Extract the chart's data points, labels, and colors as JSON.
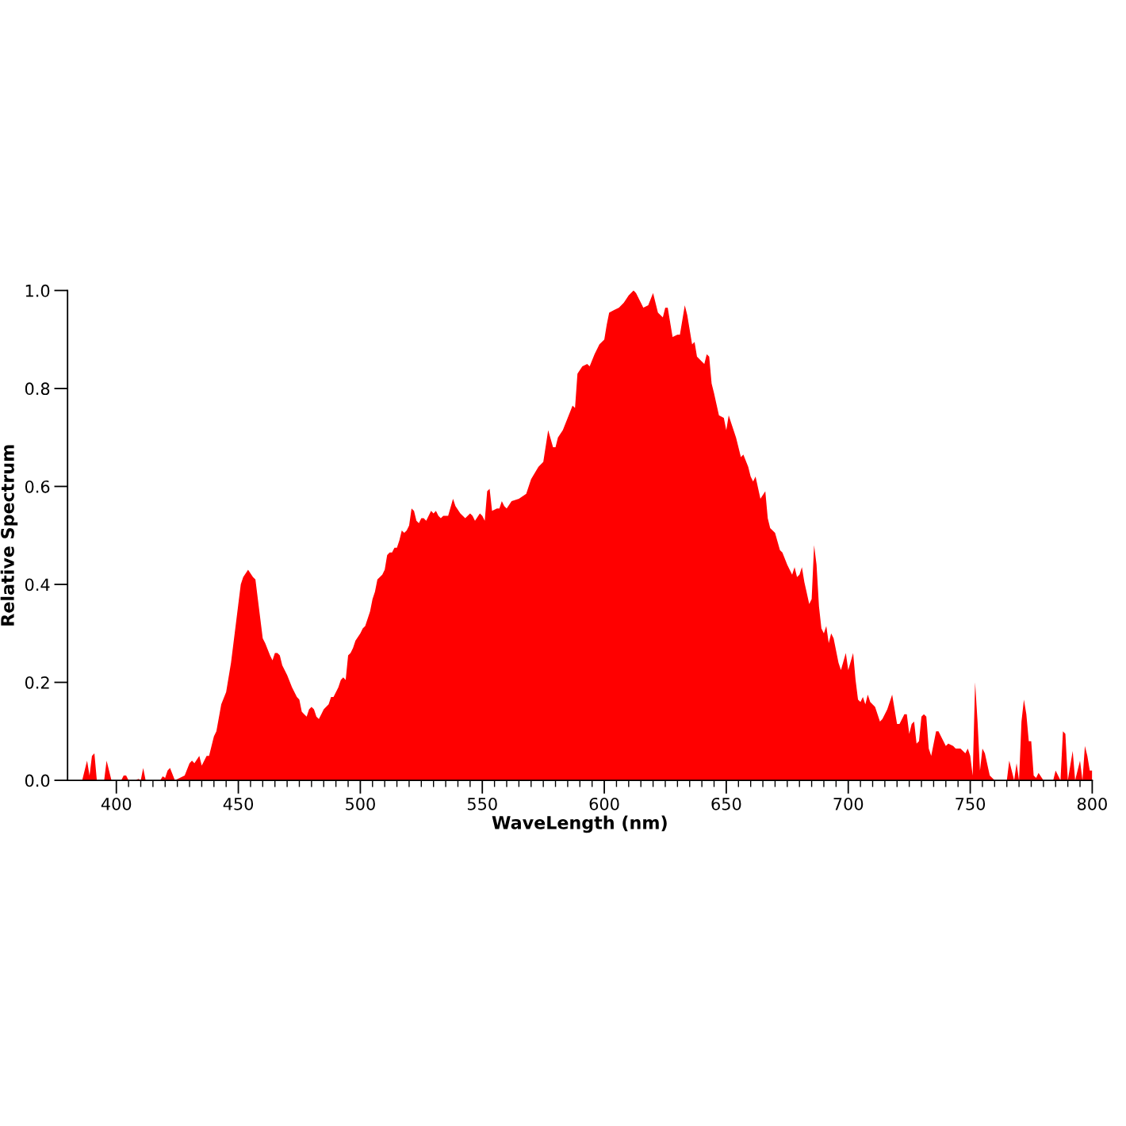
{
  "chart_data": {
    "type": "area",
    "xlabel": "WaveLength (nm)",
    "ylabel": "Relative Spectrum",
    "xlim": [
      380,
      800
    ],
    "ylim": [
      0,
      1.0
    ],
    "xticks": [
      400,
      {
        "value": 405,
        "label": null
      },
      {
        "value": 410,
        "label": null
      },
      {
        "value": 415,
        "label": null
      },
      {
        "value": 420,
        "label": null
      },
      {
        "value": 425,
        "label": null
      },
      {
        "value": 430,
        "label": null
      },
      {
        "value": 435,
        "label": null
      },
      {
        "value": 440,
        "label": null
      },
      {
        "value": 445,
        "label": null
      },
      450,
      {
        "value": 455,
        "label": null
      },
      {
        "value": 460,
        "label": null
      },
      {
        "value": 465,
        "label": null
      },
      {
        "value": 470,
        "label": null
      },
      {
        "value": 475,
        "label": null
      },
      {
        "value": 480,
        "label": null
      },
      {
        "value": 485,
        "label": null
      },
      {
        "value": 490,
        "label": null
      },
      {
        "value": 495,
        "label": null
      },
      500,
      {
        "value": 505,
        "label": null
      },
      {
        "value": 510,
        "label": null
      },
      {
        "value": 515,
        "label": null
      },
      {
        "value": 520,
        "label": null
      },
      {
        "value": 525,
        "label": null
      },
      {
        "value": 530,
        "label": null
      },
      {
        "value": 535,
        "label": null
      },
      {
        "value": 540,
        "label": null
      },
      {
        "value": 545,
        "label": null
      },
      550,
      {
        "value": 555,
        "label": null
      },
      {
        "value": 560,
        "label": null
      },
      {
        "value": 565,
        "label": null
      },
      {
        "value": 570,
        "label": null
      },
      {
        "value": 575,
        "label": null
      },
      {
        "value": 580,
        "label": null
      },
      {
        "value": 585,
        "label": null
      },
      {
        "value": 590,
        "label": null
      },
      {
        "value": 595,
        "label": null
      },
      600,
      {
        "value": 605,
        "label": null
      },
      {
        "value": 610,
        "label": null
      },
      {
        "value": 615,
        "label": null
      },
      {
        "value": 620,
        "label": null
      },
      {
        "value": 625,
        "label": null
      },
      {
        "value": 630,
        "label": null
      },
      {
        "value": 635,
        "label": null
      },
      {
        "value": 640,
        "label": null
      },
      {
        "value": 645,
        "label": null
      },
      650,
      {
        "value": 655,
        "label": null
      },
      {
        "value": 660,
        "label": null
      },
      {
        "value": 665,
        "label": null
      },
      {
        "value": 670,
        "label": null
      },
      {
        "value": 675,
        "label": null
      },
      {
        "value": 680,
        "label": null
      },
      {
        "value": 685,
        "label": null
      },
      {
        "value": 690,
        "label": null
      },
      {
        "value": 695,
        "label": null
      },
      700,
      {
        "value": 705,
        "label": null
      },
      {
        "value": 710,
        "label": null
      },
      {
        "value": 715,
        "label": null
      },
      {
        "value": 720,
        "label": null
      },
      {
        "value": 725,
        "label": null
      },
      {
        "value": 730,
        "label": null
      },
      {
        "value": 735,
        "label": null
      },
      {
        "value": 740,
        "label": null
      },
      {
        "value": 745,
        "label": null
      },
      750,
      {
        "value": 755,
        "label": null
      },
      {
        "value": 760,
        "label": null
      },
      {
        "value": 765,
        "label": null
      },
      {
        "value": 770,
        "label": null
      },
      {
        "value": 775,
        "label": null
      },
      {
        "value": 780,
        "label": null
      },
      {
        "value": 785,
        "label": null
      },
      {
        "value": 790,
        "label": null
      },
      {
        "value": 795,
        "label": null
      },
      800
    ],
    "yticks": [
      {
        "value": 0,
        "label": "0.0"
      },
      0.2,
      0.4,
      0.6,
      0.8,
      {
        "value": 1,
        "label": "1.0"
      }
    ],
    "grid": false,
    "series": [
      {
        "color": "#ff0000",
        "x": [
          380,
          386,
          388,
          389,
          390,
          391,
          392,
          395,
          396,
          398,
          402,
          403,
          404,
          405,
          408,
          409,
          410,
          411,
          412,
          418,
          419,
          420,
          421,
          422,
          424,
          428,
          430,
          431,
          432,
          434,
          435,
          437,
          438,
          440,
          441,
          443,
          445,
          447,
          449,
          451,
          452,
          454,
          456,
          457,
          459,
          460,
          461,
          463,
          464,
          465,
          466,
          467,
          468,
          470,
          472,
          474,
          475,
          476,
          477,
          478,
          479,
          480,
          481,
          482,
          483,
          484,
          485,
          487,
          488,
          489,
          491,
          492,
          493,
          494,
          495,
          496,
          497,
          498,
          500,
          501,
          502,
          504,
          505,
          506,
          507,
          509,
          510,
          511,
          512,
          513,
          514,
          515,
          516,
          517,
          518,
          519,
          520,
          521,
          522,
          523,
          524,
          525,
          526,
          527,
          528,
          529,
          530,
          531,
          532,
          533,
          534,
          536,
          538,
          539,
          541,
          542,
          543,
          545,
          546,
          547,
          549,
          550,
          551,
          552,
          553,
          554,
          556,
          557,
          558,
          559,
          560,
          562,
          565,
          568,
          570,
          573,
          575,
          577,
          579,
          580,
          581,
          583,
          585,
          587,
          588,
          589,
          591,
          593,
          594,
          596,
          598,
          600,
          601,
          602,
          604,
          606,
          608,
          610,
          612,
          613,
          615,
          616,
          618,
          620,
          622,
          624,
          625,
          626,
          628,
          630,
          631,
          633,
          634,
          636,
          637,
          638,
          640,
          641,
          642,
          643,
          644,
          645,
          647,
          649,
          650,
          651,
          652,
          654,
          656,
          657,
          659,
          660,
          661,
          662,
          664,
          666,
          667,
          668,
          669,
          670,
          672,
          673,
          675,
          676,
          677,
          678,
          679,
          680,
          681,
          682,
          684,
          685,
          686,
          687,
          688,
          689,
          690,
          691,
          692,
          693,
          694,
          696,
          697,
          699,
          700,
          702,
          703,
          704,
          705,
          706,
          707,
          708,
          709,
          711,
          712,
          713,
          714,
          716,
          717,
          718,
          720,
          721,
          723,
          724,
          725,
          726,
          727,
          728,
          729,
          730,
          731,
          732,
          733,
          734,
          736,
          737,
          738,
          740,
          741,
          743,
          744,
          746,
          747,
          748,
          749,
          750,
          751,
          752,
          753,
          754,
          755,
          756,
          758,
          760,
          765,
          766,
          767,
          768,
          769,
          770,
          771,
          772,
          773,
          774,
          775,
          776,
          777,
          778,
          780,
          784,
          785,
          786,
          787,
          788,
          789,
          790,
          792,
          793,
          795,
          796,
          797,
          798,
          799,
          800
        ],
        "values": [
          0,
          0,
          0.04,
          0.01,
          0.05,
          0.055,
          0,
          0,
          0.04,
          0,
          0,
          0.01,
          0.01,
          0,
          0,
          0.003,
          0,
          0.025,
          0,
          0,
          0.008,
          0.005,
          0.02,
          0.025,
          0,
          0.01,
          0.035,
          0.04,
          0.035,
          0.05,
          0.03,
          0.05,
          0.05,
          0.09,
          0.1,
          0.155,
          0.18,
          0.24,
          0.32,
          0.4,
          0.415,
          0.43,
          0.415,
          0.41,
          0.33,
          0.29,
          0.28,
          0.255,
          0.245,
          0.26,
          0.26,
          0.255,
          0.235,
          0.215,
          0.19,
          0.17,
          0.165,
          0.14,
          0.135,
          0.13,
          0.145,
          0.15,
          0.145,
          0.13,
          0.125,
          0.135,
          0.145,
          0.155,
          0.17,
          0.17,
          0.19,
          0.205,
          0.21,
          0.205,
          0.255,
          0.26,
          0.27,
          0.285,
          0.3,
          0.31,
          0.315,
          0.345,
          0.37,
          0.385,
          0.41,
          0.42,
          0.43,
          0.46,
          0.465,
          0.465,
          0.475,
          0.475,
          0.49,
          0.51,
          0.505,
          0.51,
          0.52,
          0.555,
          0.55,
          0.53,
          0.525,
          0.535,
          0.535,
          0.53,
          0.54,
          0.55,
          0.545,
          0.55,
          0.54,
          0.535,
          0.54,
          0.54,
          0.575,
          0.56,
          0.545,
          0.54,
          0.535,
          0.545,
          0.54,
          0.53,
          0.545,
          0.54,
          0.53,
          0.59,
          0.595,
          0.55,
          0.555,
          0.555,
          0.57,
          0.56,
          0.555,
          0.57,
          0.575,
          0.585,
          0.615,
          0.64,
          0.65,
          0.715,
          0.68,
          0.68,
          0.7,
          0.715,
          0.74,
          0.765,
          0.76,
          0.83,
          0.845,
          0.85,
          0.845,
          0.87,
          0.89,
          0.9,
          0.93,
          0.955,
          0.96,
          0.965,
          0.975,
          0.99,
          1.0,
          0.995,
          0.975,
          0.965,
          0.97,
          0.995,
          0.955,
          0.945,
          0.965,
          0.965,
          0.905,
          0.91,
          0.91,
          0.97,
          0.95,
          0.89,
          0.895,
          0.865,
          0.855,
          0.85,
          0.87,
          0.865,
          0.81,
          0.79,
          0.745,
          0.74,
          0.715,
          0.745,
          0.73,
          0.7,
          0.66,
          0.665,
          0.64,
          0.62,
          0.61,
          0.62,
          0.575,
          0.59,
          0.535,
          0.515,
          0.51,
          0.505,
          0.47,
          0.465,
          0.44,
          0.43,
          0.42,
          0.435,
          0.415,
          0.42,
          0.435,
          0.405,
          0.36,
          0.37,
          0.48,
          0.44,
          0.355,
          0.31,
          0.3,
          0.315,
          0.28,
          0.3,
          0.29,
          0.24,
          0.225,
          0.26,
          0.225,
          0.26,
          0.205,
          0.165,
          0.16,
          0.17,
          0.155,
          0.175,
          0.16,
          0.15,
          0.135,
          0.12,
          0.125,
          0.145,
          0.16,
          0.175,
          0.115,
          0.115,
          0.135,
          0.135,
          0.095,
          0.115,
          0.12,
          0.075,
          0.08,
          0.13,
          0.135,
          0.13,
          0.065,
          0.05,
          0.1,
          0.1,
          0.09,
          0.07,
          0.075,
          0.07,
          0.065,
          0.065,
          0.06,
          0.055,
          0.065,
          0.05,
          0.01,
          0.2,
          0.12,
          0.02,
          0.065,
          0.055,
          0.01,
          0,
          0,
          0.04,
          0.02,
          0,
          0.035,
          0,
          0.12,
          0.165,
          0.135,
          0.08,
          0.08,
          0.01,
          0.005,
          0.015,
          0,
          0,
          0.02,
          0.01,
          0,
          0.1,
          0.095,
          0,
          0.06,
          0,
          0.04,
          0,
          0.07,
          0.05,
          0.02,
          0.02
        ]
      }
    ]
  }
}
